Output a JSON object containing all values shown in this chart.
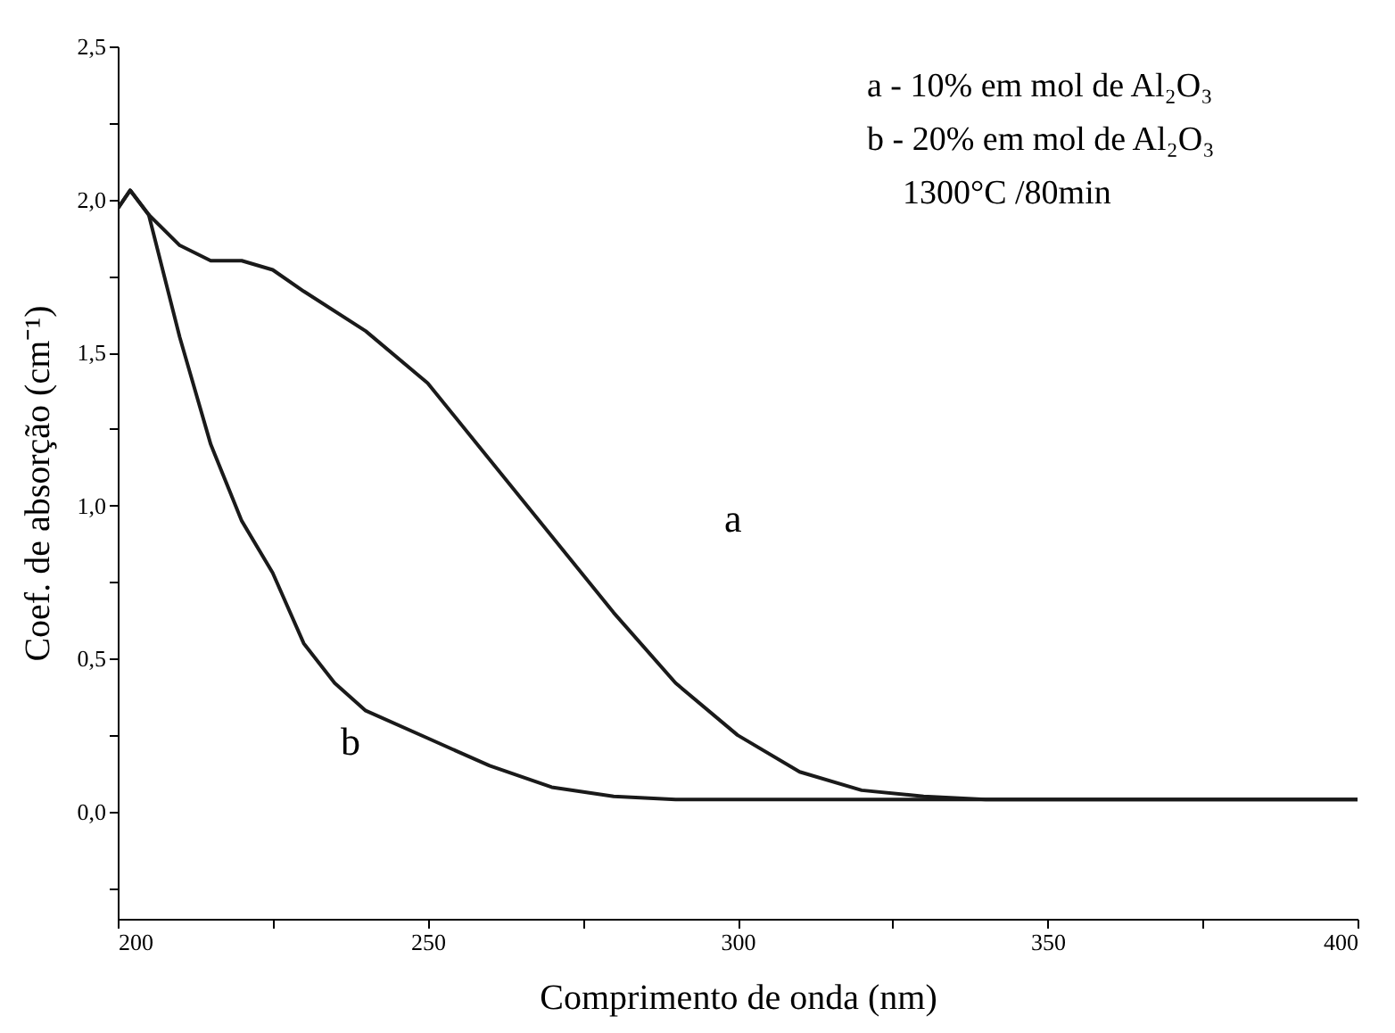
{
  "chart_data": {
    "type": "line",
    "xlabel": "Comprimento de onda (nm)",
    "ylabel": "Coef. de absorção (cm⁻¹)",
    "xlim": [
      200,
      400
    ],
    "xticks": [
      200,
      {
        "value": 225,
        "label": null
      },
      250,
      {
        "value": 275,
        "label": null
      },
      300,
      {
        "value": 325,
        "label": null
      },
      350,
      {
        "value": 375,
        "label": null
      },
      400
    ],
    "ylim": [
      -0.35,
      2.5
    ],
    "yticks": [
      {
        "value": -0.25,
        "label": null
      },
      {
        "value": 0,
        "label": "0,0"
      },
      {
        "value": 0.25,
        "label": null
      },
      {
        "value": 0.5,
        "label": "0,5"
      },
      {
        "value": 0.75,
        "label": null
      },
      {
        "value": 1.0,
        "label": "1,0"
      },
      {
        "value": 1.25,
        "label": null
      },
      {
        "value": 1.5,
        "label": "1,5"
      },
      {
        "value": 1.75,
        "label": null
      },
      {
        "value": 2.0,
        "label": "2,0"
      },
      {
        "value": 2.25,
        "label": null
      },
      {
        "value": 2.5,
        "label": "2,5"
      }
    ],
    "grid": false,
    "legend": false,
    "marker": "none",
    "line_style": "solid",
    "series": [
      {
        "color": "#1a1a1a",
        "x": [
          200,
          202,
          205,
          210,
          215,
          220,
          225,
          230,
          240,
          250,
          260,
          270,
          280,
          290,
          300,
          310,
          320,
          330,
          340,
          350,
          375,
          400
        ],
        "values": [
          1.97,
          2.03,
          1.95,
          1.85,
          1.8,
          1.8,
          1.77,
          1.7,
          1.57,
          1.4,
          1.15,
          0.9,
          0.65,
          0.42,
          0.25,
          0.13,
          0.07,
          0.05,
          0.04,
          0.04,
          0.04,
          0.04
        ]
      },
      {
        "color": "#1a1a1a",
        "x": [
          200,
          202,
          205,
          210,
          215,
          220,
          225,
          230,
          235,
          240,
          250,
          260,
          270,
          280,
          290,
          300,
          350,
          400
        ],
        "values": [
          1.97,
          2.03,
          1.95,
          1.55,
          1.2,
          0.95,
          0.78,
          0.55,
          0.42,
          0.33,
          0.24,
          0.15,
          0.08,
          0.05,
          0.04,
          0.04,
          0.04,
          0.04
        ]
      }
    ],
    "annotations": [
      "a - 10% em mol de Al₂O₃",
      "b - 20% em mol de Al₂O₃",
      "1300°C /80min",
      "a",
      "b"
    ]
  }
}
